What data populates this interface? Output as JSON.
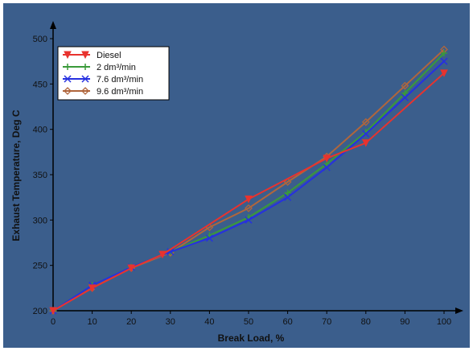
{
  "chart_data": {
    "type": "line",
    "title": "",
    "xlabel": "Break Load, %",
    "ylabel": "Exhaust Temperature, Deg C",
    "xlim": [
      0,
      100
    ],
    "ylim": [
      200,
      500
    ],
    "x_ticks": [
      "0",
      "10",
      "20",
      "30",
      "40",
      "50",
      "60",
      "70",
      "80",
      "90",
      "100"
    ],
    "y_ticks": [
      "200",
      "250",
      "300",
      "350",
      "400",
      "450",
      "500"
    ],
    "grid": false,
    "legend_position": "top-left",
    "background_color": "#3b5e8c",
    "series": [
      {
        "name": "Diesel",
        "color": "#e8332e",
        "marker": "triangle-down",
        "x": [
          0,
          10,
          20,
          28,
          50,
          70,
          80,
          100
        ],
        "y": [
          200,
          225,
          247,
          262,
          323,
          368,
          385,
          462
        ]
      },
      {
        "name": "2 dm³/min",
        "color": "#3a9a3a",
        "marker": "plus",
        "x": [
          0,
          10,
          20,
          30,
          40,
          50,
          60,
          70,
          80,
          90,
          100
        ],
        "y": [
          200,
          228,
          248,
          265,
          283,
          303,
          330,
          362,
          397,
          440,
          484
        ]
      },
      {
        "name": "7.6 dm³/min",
        "color": "#2630e0",
        "marker": "x",
        "x": [
          0,
          10,
          20,
          30,
          40,
          50,
          60,
          70,
          80,
          90,
          100
        ],
        "y": [
          200,
          228,
          248,
          265,
          280,
          300,
          325,
          358,
          395,
          435,
          475
        ]
      },
      {
        "name": "9.6 dm³/min",
        "color": "#b0663c",
        "marker": "diamond",
        "x": [
          0,
          10,
          20,
          30,
          40,
          50,
          60,
          70,
          80,
          90,
          100
        ],
        "y": [
          200,
          225,
          247,
          264,
          292,
          313,
          342,
          370,
          408,
          448,
          488
        ]
      }
    ]
  }
}
